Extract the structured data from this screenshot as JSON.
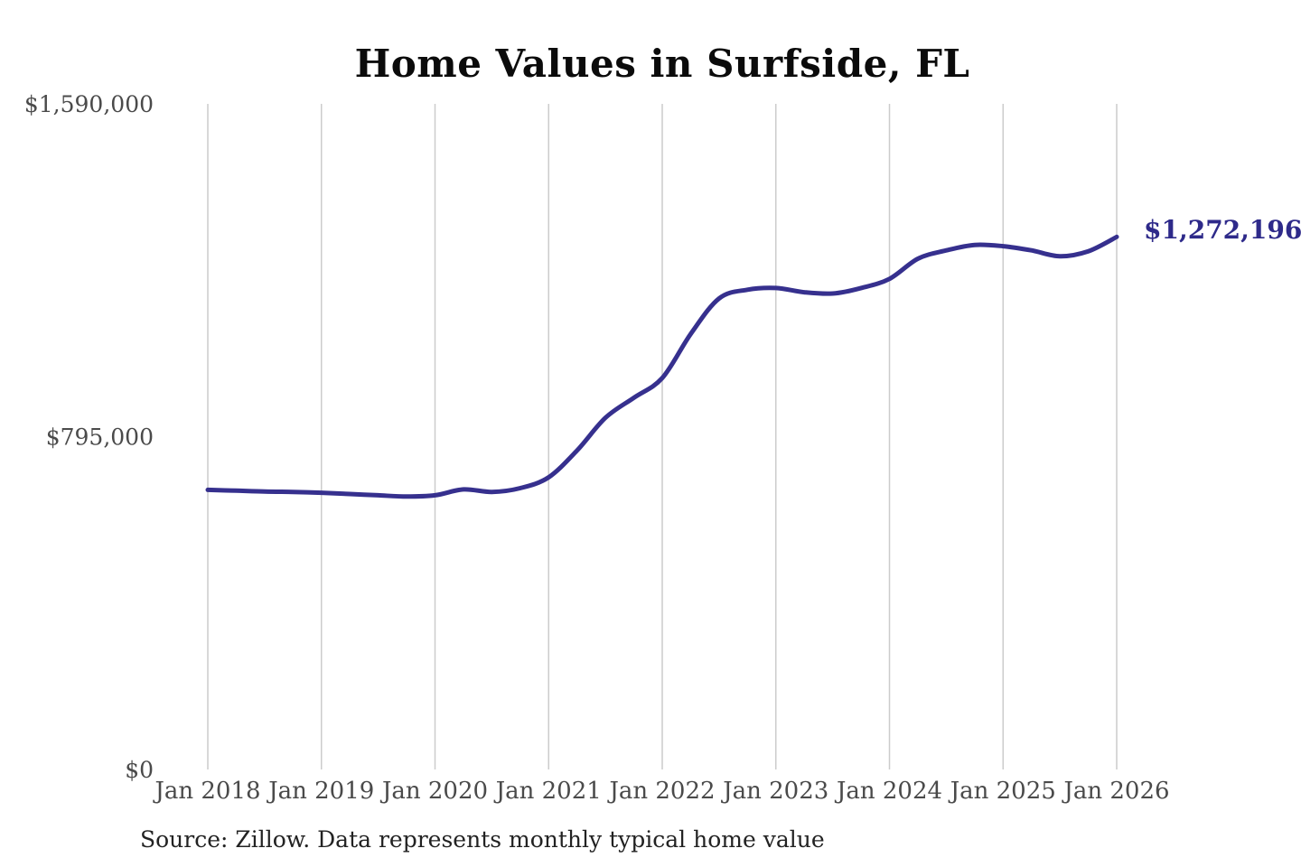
{
  "title": "Home Values in Surfside, FL",
  "source_note": "Source: Zillow. Data represents monthly typical home value",
  "annotation": {
    "text": "$1,272,196",
    "value": 1272196
  },
  "colors": {
    "line": "#36308e",
    "annotation_text": "#2e2a8a",
    "grid": "#cccccc",
    "title_text": "#0b0b0b",
    "axis_label": "#4a4a4a",
    "source_text": "#222222",
    "background": "#ffffff"
  },
  "chart_data": {
    "type": "line",
    "title": "Home Values in Surfside, FL",
    "xlabel": "",
    "ylabel": "",
    "ylim": [
      0,
      1590000
    ],
    "grid": "vertical-only",
    "legend": "none",
    "line_color": "#36308e",
    "x_tick_labels": [
      "Jan 2018",
      "Jan 2019",
      "Jan 2020",
      "Jan 2021",
      "Jan 2022",
      "Jan 2023",
      "Jan 2024",
      "Jan 2025",
      "Jan 2026"
    ],
    "y_ticks": [
      {
        "label": "$0",
        "value": 0
      },
      {
        "label": "$795,000",
        "value": 795000
      },
      {
        "label": "$1,590,000",
        "value": 1590000
      }
    ],
    "series": [
      {
        "name": "Monthly typical home value",
        "x": [
          "2018-01",
          "2018-04",
          "2018-07",
          "2018-10",
          "2019-01",
          "2019-04",
          "2019-07",
          "2019-10",
          "2020-01",
          "2020-04",
          "2020-07",
          "2020-10",
          "2021-01",
          "2021-04",
          "2021-07",
          "2021-10",
          "2022-01",
          "2022-04",
          "2022-07",
          "2022-10",
          "2023-01",
          "2023-04",
          "2023-07",
          "2023-10",
          "2024-01",
          "2024-04",
          "2024-07",
          "2024-10",
          "2025-01",
          "2025-04",
          "2025-07",
          "2025-10",
          "2026-01"
        ],
        "values": [
          668000,
          666000,
          664000,
          663000,
          661000,
          658000,
          655000,
          652000,
          655000,
          669000,
          663000,
          672000,
          698000,
          762000,
          840000,
          888000,
          935000,
          1040000,
          1125000,
          1146000,
          1150000,
          1140000,
          1137000,
          1150000,
          1172000,
          1220000,
          1240000,
          1253000,
          1250000,
          1240000,
          1226000,
          1238000,
          1272196
        ]
      }
    ],
    "annotation": {
      "text": "$1,272,196",
      "x": "2026-01",
      "value": 1272196,
      "position": "end-of-line"
    }
  }
}
